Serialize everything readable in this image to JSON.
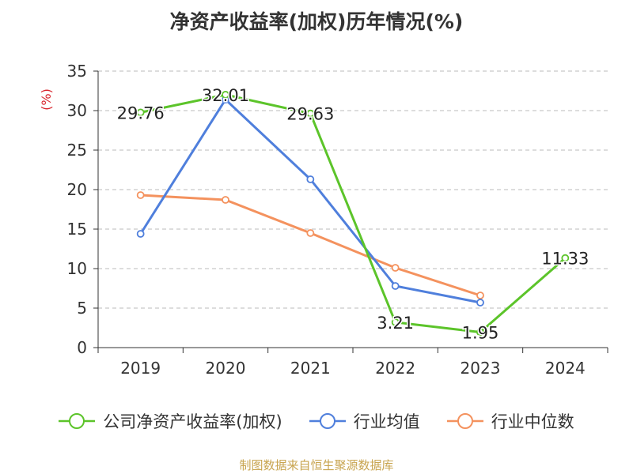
{
  "title": "净资产收益率(加权)历年情况(%)",
  "source_note": "制图数据来自恒生聚源数据库",
  "colors": {
    "company": "#5cc42a",
    "industry_mean": "#4f7fdc",
    "industry_median": "#f4925e",
    "axis": "#333333",
    "grid": "#bbbbbb",
    "ylabel": "#d9262e"
  },
  "chart_data": {
    "type": "line",
    "ylabel": "(%)",
    "ylim": [
      0,
      35
    ],
    "yticks": [
      "0",
      "5",
      "10",
      "15",
      "20",
      "25",
      "30",
      "35"
    ],
    "categories": [
      "2019",
      "2020",
      "2021",
      "2022",
      "2023",
      "2024"
    ],
    "grid": true,
    "legend_position": "bottom",
    "series": [
      {
        "name": "公司净资产收益率(加权)",
        "values": [
          29.76,
          32.01,
          29.63,
          3.21,
          1.95,
          11.33
        ],
        "labels": [
          "29.76",
          "32.01",
          "29.63",
          "3.21",
          "1.95",
          "11.33"
        ],
        "color_key": "company"
      },
      {
        "name": "行业均值",
        "values": [
          14.4,
          31.4,
          21.3,
          7.8,
          5.7,
          null
        ],
        "color_key": "industry_mean"
      },
      {
        "name": "行业中位数",
        "values": [
          19.3,
          18.7,
          14.5,
          10.1,
          6.6,
          null
        ],
        "color_key": "industry_median"
      }
    ]
  }
}
